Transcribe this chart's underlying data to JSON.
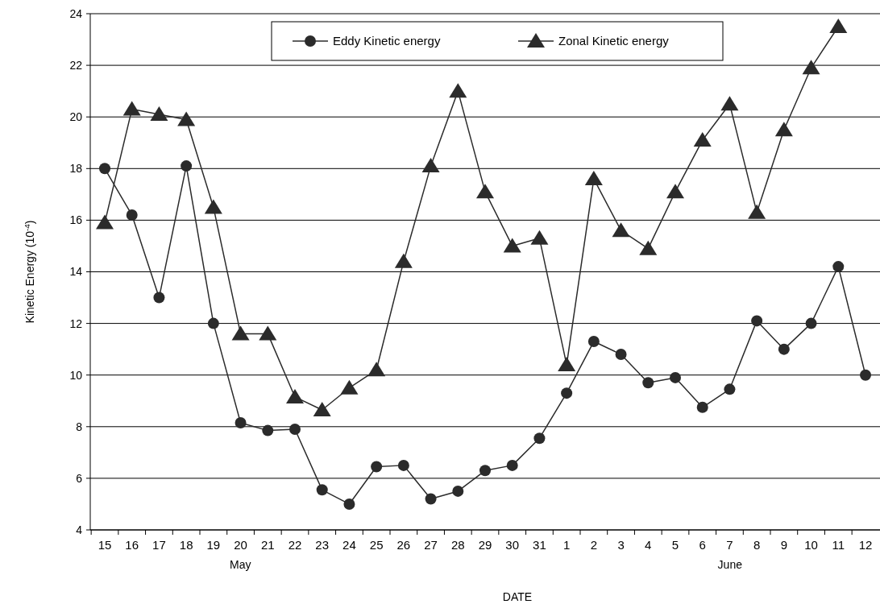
{
  "chart_data": {
    "type": "line",
    "xlabel": "DATE",
    "ylabel": "Kinetic Energy (10$^{-4}$)",
    "categories": [
      "15",
      "16",
      "17",
      "18",
      "19",
      "20",
      "21",
      "22",
      "23",
      "24",
      "25",
      "26",
      "27",
      "28",
      "29",
      "30",
      "31",
      "1",
      "2",
      "3",
      "4",
      "5",
      "6",
      "7",
      "8",
      "9",
      "10",
      "11",
      "12"
    ],
    "series": [
      {
        "name": "Eddy Kinetic energy",
        "color": "#2b2b2b",
        "marker": "circle",
        "values": [
          18,
          16.2,
          13,
          18.1,
          12,
          8.15,
          7.85,
          7.9,
          5.55,
          5.0,
          6.45,
          6.5,
          5.2,
          5.5,
          6.3,
          6.5,
          7.55,
          9.3,
          11.3,
          10.8,
          9.7,
          9.9,
          8.75,
          9.45,
          12.1,
          11.0,
          12.0,
          14.2,
          10.0
        ]
      },
      {
        "name": "Zonal Kinetic energy",
        "color": "#2b2b2b",
        "marker": "triangle",
        "values": [
          15.9,
          20.3,
          20.1,
          19.9,
          16.5,
          11.6,
          11.6,
          9.15,
          8.65,
          9.5,
          10.2,
          14.4,
          18.1,
          21.0,
          17.1,
          15.0,
          15.3,
          10.4,
          17.6,
          15.6,
          14.9,
          17.1,
          19.1,
          20.5,
          16.3,
          19.5,
          21.9,
          23.5,
          null
        ]
      }
    ],
    "ylim": [
      4,
      24
    ],
    "yticks": [
      4,
      6,
      8,
      10,
      12,
      14,
      16,
      18,
      20,
      22,
      24
    ],
    "grid": "y",
    "legend": "top",
    "line_style": "solid",
    "annotations": [
      "May",
      "June"
    ]
  }
}
